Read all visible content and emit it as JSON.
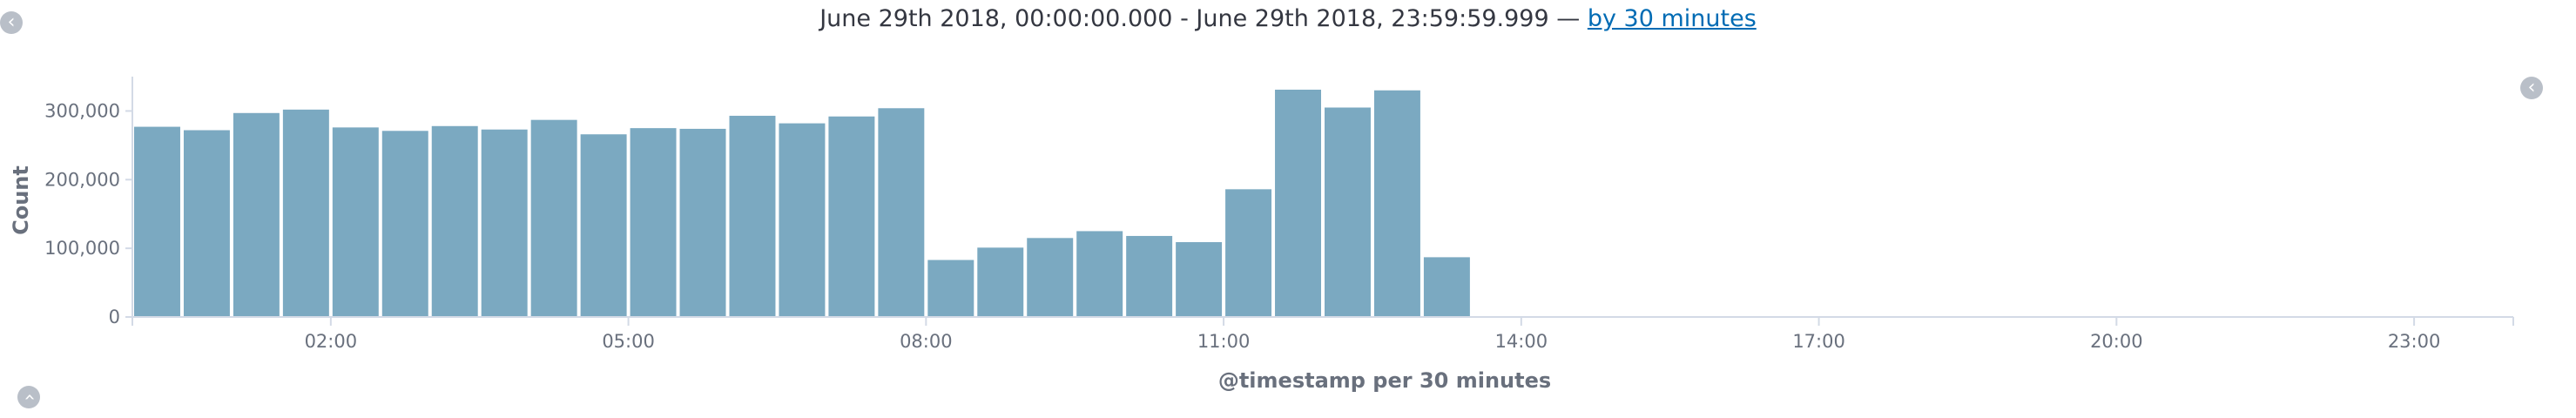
{
  "header": {
    "range_text": "June 29th 2018, 00:00:00.000 - June 29th 2018, 23:59:59.999 — ",
    "interval_link": "by 30 minutes"
  },
  "controls": {
    "left_icon": "chevron-left-icon",
    "right_icon": "chevron-left-icon",
    "bottom_icon": "chevron-up-icon"
  },
  "chart_data": {
    "type": "bar",
    "ylabel": "Count",
    "xlabel": "@timestamp per 30 minutes",
    "ylim": [
      0,
      350000
    ],
    "y_ticks": [
      0,
      100000,
      200000,
      300000
    ],
    "y_tick_labels": [
      "0",
      "100,000",
      "200,000",
      "300,000"
    ],
    "x_ticks": [
      "02:00",
      "05:00",
      "08:00",
      "11:00",
      "14:00",
      "17:00",
      "20:00",
      "23:00"
    ],
    "bar_interval_minutes": 30,
    "x_domain": [
      "00:00",
      "24:00"
    ],
    "categories": [
      "00:00",
      "00:30",
      "01:00",
      "01:30",
      "02:00",
      "02:30",
      "03:00",
      "03:30",
      "04:00",
      "04:30",
      "05:00",
      "05:30",
      "06:00",
      "06:30",
      "07:00",
      "07:30",
      "08:00",
      "08:30",
      "09:00",
      "09:30",
      "10:00",
      "10:30",
      "11:00",
      "11:30",
      "12:00",
      "12:30",
      "13:00"
    ],
    "values": [
      277000,
      272000,
      297000,
      302000,
      276000,
      271000,
      278000,
      273000,
      287000,
      266000,
      275000,
      274000,
      293000,
      282000,
      292000,
      304000,
      83000,
      101000,
      115000,
      125000,
      118000,
      109000,
      186000,
      331000,
      305000,
      330000,
      87000
    ],
    "grid": false,
    "legend": "none",
    "bar_color": "#7ba9c1"
  }
}
